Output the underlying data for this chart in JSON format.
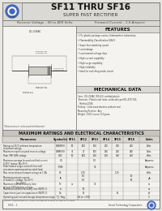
{
  "title_main": "SF11 THRU SF16",
  "title_sub": "SUPER FAST RECTIFIER",
  "subtitle_left": "Reverse Voltage - 50 to 400 Volts",
  "subtitle_right": "Forward Current - 1.0 Ampere",
  "bg_color": "#e8e6e0",
  "page_bg": "#f4f3f0",
  "features_title": "FEATURES",
  "features": [
    "File plastic package carries Underwriters Laboratory",
    "Flammability Classification 94V-0",
    "Super fast switching speed",
    "Low leakage",
    "Low forward voltage drop",
    "High current capability",
    "High surge capability",
    "High reliability",
    "Ideal for switching mode circuit"
  ],
  "mech_title": "MECHANICAL DATA",
  "mech_lines": [
    "Case : DO-204AC (DO-41), molded plastic",
    "Terminals : Plated axial leads, solderable per MIL-STD-750,",
    "   Method 2026",
    "Polarity : Color band denotes cathode end",
    "Mounting Position : Any",
    "Weight : 0.013 ounce, 0.4 gram"
  ],
  "table_title": "MAXIMUM RATINGS AND ELECTRICAL CHARACTERISTICS",
  "col_headers": [
    "Symbol(s)",
    "SF11",
    "SF12",
    "SF13",
    "SF14",
    "SF15",
    "SF16",
    "Units"
  ],
  "table_rows": [
    [
      "Ratings at 25°C ambient temperature\nmaximum ratings",
      "VRRM(V)",
      "50",
      "100",
      "150",
      "200",
      "300",
      "400",
      "Volts"
    ],
    [
      "Maximum repetitive peak reverse voltage",
      "VRMS(V)",
      "35",
      "70",
      "105",
      "140",
      "210",
      "280",
      "Volts"
    ],
    [
      "Peak (FM) RMS voltage",
      "VDC",
      "50",
      "100",
      "150",
      "200",
      "300",
      "400",
      "Volts"
    ],
    [
      "Maximum DC blocking voltage",
      "",
      "",
      "",
      "",
      "",
      "",
      "",
      ""
    ],
    [
      "Maximum average forward rectified current\n0.375\" (9.5mm) lead length at TA=75°C",
      "IO",
      "",
      "",
      "1.0",
      "",
      "",
      "",
      "Amperes"
    ],
    [
      "Peak forward surge current\n8.3ms single half sine-wave superimposed on rated\nload (JEDEC Standard)",
      "IFSM",
      "",
      "",
      "30",
      "",
      "",
      "",
      "Amperes"
    ],
    [
      "Maximum instantaneous forward voltage at 1.0 A",
      "VF",
      "",
      "1.70",
      "",
      "",
      "1.25",
      "",
      "Volts"
    ],
    [
      "Maximum reverse current\nat rated DC voltage",
      "IR",
      "",
      "5.0",
      "",
      "",
      "",
      "10",
      "µA"
    ],
    [
      "Maximum reverse recovery time\nall over 500 blocking voltage",
      "Trr",
      "",
      "",
      "35",
      "",
      "",
      "",
      "ns"
    ],
    [
      "Maximum common recovery time (NOTE 1)",
      "ta",
      "",
      "10",
      "",
      "",
      "",
      "",
      "ns"
    ],
    [
      "Capacitance junction capacitance (NOTE 1)",
      "Ca",
      "",
      "15",
      "",
      "",
      "15",
      "",
      "pF"
    ],
    [
      "Operating junction and storage temperature range",
      "TJ, Tstg",
      "",
      "-65 to +150",
      "",
      "",
      "",
      "",
      "°C"
    ]
  ],
  "footer_note": "NOTES: (1)Measured at 1.0 MHz and applied reverse voltage of 4.0 Volts",
  "page_num": "SF11 - 1",
  "company": "Genel Technology Corporation"
}
